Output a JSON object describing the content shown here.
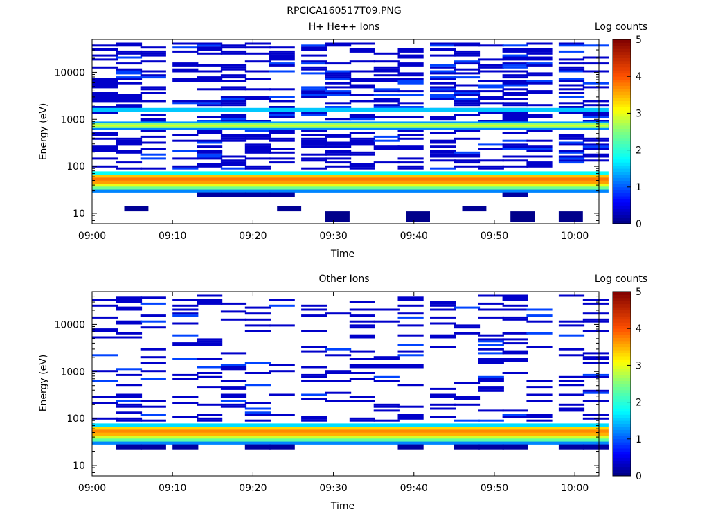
{
  "figure_title": "RPCICA160517T09.PNG",
  "colorscale": {
    "label": "Log counts",
    "ticks": [
      "0",
      "1",
      "2",
      "3",
      "4",
      "5"
    ],
    "range": [
      0,
      5
    ]
  },
  "chart_data": [
    {
      "type": "heatmap",
      "title": "H+ He++ Ions",
      "xlabel": "Time",
      "ylabel": "Energy (eV)",
      "yscale": "log",
      "ylim": [
        6,
        50000
      ],
      "xlim": [
        "09:00",
        "10:03"
      ],
      "x_ticks": [
        "09:00",
        "09:10",
        "09:20",
        "09:30",
        "09:40",
        "09:50",
        "10:00"
      ],
      "y_ticks": [
        "10",
        "100",
        "1000",
        "10000"
      ],
      "time_bins": [
        "09:00",
        "09:03",
        "09:06",
        "09:10",
        "09:13",
        "09:16",
        "09:19",
        "09:22",
        "09:26",
        "09:29",
        "09:32",
        "09:35",
        "09:38",
        "09:42",
        "09:45",
        "09:48",
        "09:51",
        "09:54",
        "09:58",
        "10:01"
      ],
      "core_band": {
        "energy_range_eV": [
          28,
          78
        ],
        "levels": [
          1.2,
          2.4,
          3.0,
          3.6,
          3.8,
          3.4,
          1.8
        ]
      },
      "mid_band": {
        "energy_range_eV": [
          600,
          900
        ],
        "levels": [
          1.3,
          2.6,
          2.9,
          2.5,
          1.2
        ]
      },
      "cyan_band": {
        "energy_range_eV": [
          1450,
          1750
        ],
        "level": 1.5
      },
      "scatter_density": 0.42,
      "low_energy_blocks": [
        {
          "t0": "09:04",
          "t1": "09:07",
          "e0": 11,
          "e1": 14,
          "level": 0.1
        },
        {
          "t0": "09:23",
          "t1": "09:26",
          "e0": 11,
          "e1": 14,
          "level": 0.1
        },
        {
          "t0": "09:29",
          "t1": "09:32",
          "e0": 6.5,
          "e1": 11,
          "level": 0.05
        },
        {
          "t0": "09:39",
          "t1": "09:42",
          "e0": 6.5,
          "e1": 11,
          "level": 0.05
        },
        {
          "t0": "09:46",
          "t1": "09:49",
          "e0": 11,
          "e1": 14,
          "level": 0.1
        },
        {
          "t0": "09:52",
          "t1": "09:55",
          "e0": 6.5,
          "e1": 11,
          "level": 0.05
        },
        {
          "t0": "09:58",
          "t1": "10:01",
          "e0": 6.5,
          "e1": 11,
          "level": 0.05
        }
      ]
    },
    {
      "type": "heatmap",
      "title": "Other Ions",
      "xlabel": "Time",
      "ylabel": "Energy (eV)",
      "yscale": "log",
      "ylim": [
        6,
        50000
      ],
      "xlim": [
        "09:00",
        "10:03"
      ],
      "x_ticks": [
        "09:00",
        "09:10",
        "09:20",
        "09:30",
        "09:40",
        "09:50",
        "10:00"
      ],
      "y_ticks": [
        "10",
        "100",
        "1000",
        "10000"
      ],
      "time_bins": [
        "09:00",
        "09:03",
        "09:06",
        "09:10",
        "09:13",
        "09:16",
        "09:19",
        "09:22",
        "09:26",
        "09:29",
        "09:32",
        "09:35",
        "09:38",
        "09:42",
        "09:45",
        "09:48",
        "09:51",
        "09:54",
        "09:58",
        "10:01"
      ],
      "core_band": {
        "energy_range_eV": [
          28,
          78
        ],
        "levels": [
          1.2,
          2.3,
          2.9,
          3.5,
          3.7,
          3.3,
          1.6
        ]
      },
      "mid_band": null,
      "cyan_band": null,
      "scatter_density": 0.22,
      "low_energy_blocks": []
    }
  ]
}
